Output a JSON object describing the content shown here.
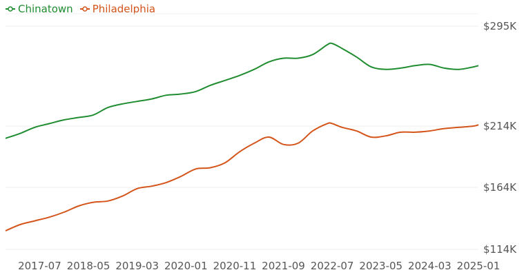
{
  "chart_data": {
    "type": "line",
    "title": "",
    "xlabel": "",
    "ylabel": "",
    "legend_position": "top-left",
    "grid": true,
    "ylim": [
      114000,
      305000
    ],
    "x_tick_labels": [
      "2017-07",
      "2018-05",
      "2019-03",
      "2020-01",
      "2020-11",
      "2021-09",
      "2022-07",
      "2023-05",
      "2024-03",
      "2025-01"
    ],
    "y_ticks": [
      {
        "value": 114000,
        "label": "$114K"
      },
      {
        "value": 164000,
        "label": "$164K"
      },
      {
        "value": 214000,
        "label": "$214K"
      },
      {
        "value": 295000,
        "label": "$295K"
      }
    ],
    "x": [
      "2016-12",
      "2017-03",
      "2017-06",
      "2017-09",
      "2017-12",
      "2018-03",
      "2018-06",
      "2018-09",
      "2018-12",
      "2019-03",
      "2019-06",
      "2019-09",
      "2019-12",
      "2020-03",
      "2020-06",
      "2020-09",
      "2020-12",
      "2021-03",
      "2021-06",
      "2021-09",
      "2021-12",
      "2022-03",
      "2022-06",
      "2022-07",
      "2022-09",
      "2022-12",
      "2023-03",
      "2023-06",
      "2023-09",
      "2023-12",
      "2024-03",
      "2024-06",
      "2024-09",
      "2024-12",
      "2025-01"
    ],
    "series": [
      {
        "name": "Chinatown",
        "color": "#1e8c2f",
        "values": [
          204000,
          208000,
          213000,
          216000,
          219000,
          221000,
          223000,
          229000,
          232000,
          234000,
          236000,
          239000,
          240000,
          242000,
          247000,
          251000,
          255000,
          260000,
          266000,
          269000,
          269000,
          272000,
          280000,
          281000,
          277000,
          270000,
          262000,
          260000,
          261000,
          263000,
          264000,
          261000,
          260000,
          262000,
          263000
        ]
      },
      {
        "name": "Philadelphia",
        "color": "#d4541a",
        "values": [
          129000,
          134000,
          137000,
          140000,
          144000,
          149000,
          152000,
          153000,
          157000,
          163000,
          165000,
          168000,
          173000,
          179000,
          180000,
          184000,
          193000,
          200000,
          205000,
          199000,
          200000,
          210000,
          216000,
          216000,
          213000,
          210000,
          205000,
          206000,
          209000,
          209000,
          210000,
          212000,
          213000,
          214000,
          215000
        ]
      }
    ]
  }
}
